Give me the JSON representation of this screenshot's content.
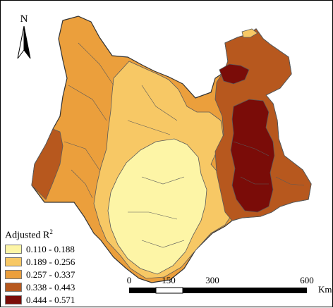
{
  "north_arrow": {
    "label": "N",
    "icon": "north-arrow-icon"
  },
  "legend": {
    "title": "Adjusted R",
    "title_sup": "2",
    "classes": [
      {
        "label": "0.110 - 0.188",
        "color": "#fdf5a6"
      },
      {
        "label": "0.189 - 0.256",
        "color": "#f7c865"
      },
      {
        "label": "0.257 - 0.337",
        "color": "#eb9f3c"
      },
      {
        "label": "0.338 - 0.443",
        "color": "#b7581e"
      },
      {
        "label": "0.444 - 0.571",
        "color": "#7a0c08"
      }
    ]
  },
  "scale_bar": {
    "ticks": [
      "0",
      "150",
      "300",
      "600"
    ],
    "unit": "Km"
  },
  "colors": {
    "boundary": "#5a5a5a",
    "outline": "#333333"
  }
}
